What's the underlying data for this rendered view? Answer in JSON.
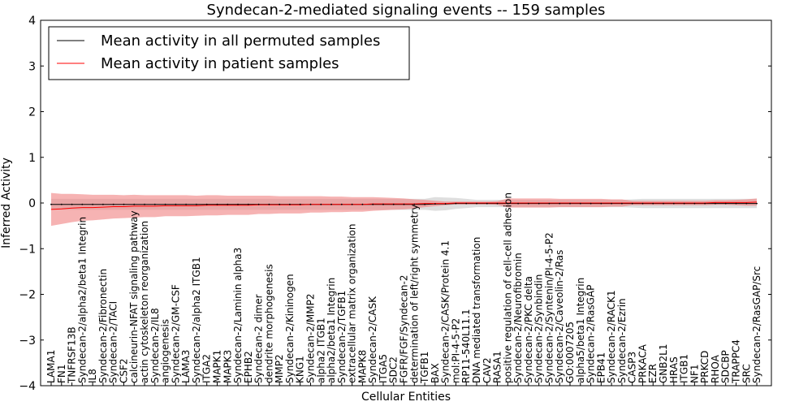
{
  "chart_data": {
    "type": "line",
    "title": "Syndecan-2-mediated signaling events -- 159 samples",
    "xlabel": "Cellular Entities",
    "ylabel": "Inferred Activity",
    "ylim": [
      -4,
      4
    ],
    "yticks": [
      -4,
      -3,
      -2,
      -1,
      0,
      1,
      2,
      3,
      4
    ],
    "grid": false,
    "legend_position": "top-left",
    "colors": {
      "permuted": "#000000",
      "patient": "#ff0000",
      "patient_band": "#f08080",
      "permuted_band": "#c8c8c8"
    },
    "categories": [
      "LAMA1",
      "FN1",
      "TNFRSF13B",
      "Syndecan-2/alpha2/beta1 Integrin",
      "IL8",
      "Syndecan-2/Fibronectin",
      "Syndecan-2/TACI",
      "CSF2",
      "calcineurin-NFAT signaling pathway",
      "actin cytoskeleton reorganization",
      "Syndecan-2/IL8",
      "angiogenesis",
      "Syndecan-2/GM-CSF",
      "LAMA3",
      "Syndecan-2/alpha2 ITGB1",
      "ITGA2",
      "MAPK1",
      "MAPK3",
      "Syndecan-2/Laminin alpha3",
      "EPHB2",
      "Syndecan-2 dimer",
      "dendrite morphogenesis",
      "MMP2",
      "Syndecan-2/Kininogen",
      "KNG1",
      "Syndecan-2/MMP2",
      "alpha2 ITGB1",
      "alpha2/beta1 Integrin",
      "Syndecan-2/TGFB1",
      "extracellular matrix organization",
      "MAPK8",
      "Syndecan-2/CASK",
      "ITGA5",
      "SDC2",
      "FGFR/FGF/Syndecan-2",
      "determination of left/right symmetry",
      "TGFB1",
      "BAX",
      "Syndecan-2/CASK/Protein 4.1",
      "mol:PI-4-5-P2",
      "RP11-540L11.1",
      "DNA mediated transformation",
      "CAV2",
      "RASA1",
      "positive regulation of cell-cell adhesion",
      "Syndecan-2/Neurofibromin",
      "Syndecan-2/PKC delta",
      "Syndecan-2/Synbindin",
      "Syndecan-2/Syntenin/PI-4-5-P2",
      "Syndecan-2/Caveolin-2/Ras",
      "GO:0007205",
      "alpha5/beta1 Integrin",
      "Syndecan-2/RasGAP",
      "EPB41",
      "Syndecan-2/RACK1",
      "Syndecan-2/Ezrin",
      "CASP3",
      "PRKACA",
      "EZR",
      "GNB2L1",
      "HRAS",
      "ITGB1",
      "NF1",
      "PRKCD",
      "RHOA",
      "SDCBP",
      "TRAPPC4",
      "SRC",
      "Syndecan-2/RasGAP/Src"
    ],
    "series": [
      {
        "name": "Mean activity in all permuted samples",
        "values": [
          -0.03,
          -0.03,
          -0.03,
          -0.03,
          -0.03,
          -0.03,
          -0.03,
          -0.03,
          -0.03,
          -0.03,
          -0.03,
          -0.03,
          -0.03,
          -0.03,
          -0.03,
          -0.03,
          -0.03,
          -0.03,
          -0.03,
          -0.03,
          -0.03,
          -0.03,
          -0.03,
          -0.03,
          -0.03,
          -0.03,
          -0.03,
          -0.03,
          -0.03,
          -0.03,
          -0.03,
          -0.03,
          -0.03,
          -0.03,
          -0.03,
          -0.03,
          -0.03,
          -0.02,
          -0.02,
          -0.01,
          -0.01,
          -0.01,
          -0.01,
          -0.01,
          -0.01,
          -0.01,
          -0.01,
          -0.01,
          -0.01,
          -0.01,
          -0.01,
          -0.01,
          -0.01,
          -0.01,
          -0.01,
          -0.01,
          -0.01,
          -0.01,
          -0.01,
          -0.01,
          -0.01,
          -0.01,
          -0.01,
          -0.01,
          -0.01,
          -0.01,
          -0.01,
          -0.01,
          -0.01
        ]
      },
      {
        "name": "Mean activity in patient samples",
        "values": [
          -0.14,
          -0.13,
          -0.11,
          -0.1,
          -0.1,
          -0.09,
          -0.08,
          -0.08,
          -0.07,
          -0.07,
          -0.07,
          -0.06,
          -0.06,
          -0.06,
          -0.06,
          -0.05,
          -0.05,
          -0.05,
          -0.05,
          -0.05,
          -0.04,
          -0.04,
          -0.04,
          -0.04,
          -0.04,
          -0.03,
          -0.03,
          -0.03,
          -0.03,
          -0.03,
          -0.03,
          -0.02,
          -0.02,
          -0.02,
          -0.02,
          -0.02,
          -0.01,
          -0.01,
          -0.01,
          0,
          0,
          0,
          0,
          0,
          0,
          0,
          0,
          0,
          0,
          0,
          0,
          0,
          0,
          0,
          0,
          0,
          0,
          0,
          0,
          0,
          0,
          0,
          0,
          0,
          0.01,
          0.01,
          0.01,
          0.01,
          0.02
        ]
      }
    ],
    "bands": {
      "patient_spread": [
        0.36,
        0.33,
        0.31,
        0.29,
        0.28,
        0.27,
        0.26,
        0.25,
        0.25,
        0.24,
        0.24,
        0.23,
        0.23,
        0.23,
        0.22,
        0.22,
        0.22,
        0.21,
        0.21,
        0.21,
        0.2,
        0.2,
        0.19,
        0.19,
        0.19,
        0.18,
        0.18,
        0.17,
        0.17,
        0.16,
        0.16,
        0.15,
        0.14,
        0.13,
        0.12,
        0.1,
        0.08,
        0.06,
        0.04,
        0.03,
        0.03,
        0.03,
        0.03,
        0.04,
        0.1,
        0.1,
        0.1,
        0.1,
        0.1,
        0.09,
        0.09,
        0.09,
        0.09,
        0.09,
        0.08,
        0.08,
        0.05,
        0.05,
        0.05,
        0.05,
        0.05,
        0.05,
        0.05,
        0.05,
        0.05,
        0.05,
        0.06,
        0.07,
        0.08
      ],
      "permuted_spread": [
        0.12,
        0.12,
        0.12,
        0.12,
        0.12,
        0.12,
        0.12,
        0.12,
        0.12,
        0.12,
        0.12,
        0.12,
        0.12,
        0.12,
        0.12,
        0.12,
        0.12,
        0.12,
        0.12,
        0.12,
        0.12,
        0.12,
        0.12,
        0.12,
        0.12,
        0.12,
        0.12,
        0.12,
        0.12,
        0.12,
        0.12,
        0.12,
        0.12,
        0.12,
        0.12,
        0.12,
        0.12,
        0.15,
        0.14,
        0.12,
        0.1,
        0.08,
        0.08,
        0.08,
        0.08,
        0.08,
        0.08,
        0.08,
        0.08,
        0.08,
        0.08,
        0.08,
        0.08,
        0.08,
        0.08,
        0.08,
        0.09,
        0.1,
        0.1,
        0.1,
        0.1,
        0.1,
        0.1,
        0.1,
        0.1,
        0.1,
        0.1,
        0.1,
        0.1
      ]
    }
  }
}
